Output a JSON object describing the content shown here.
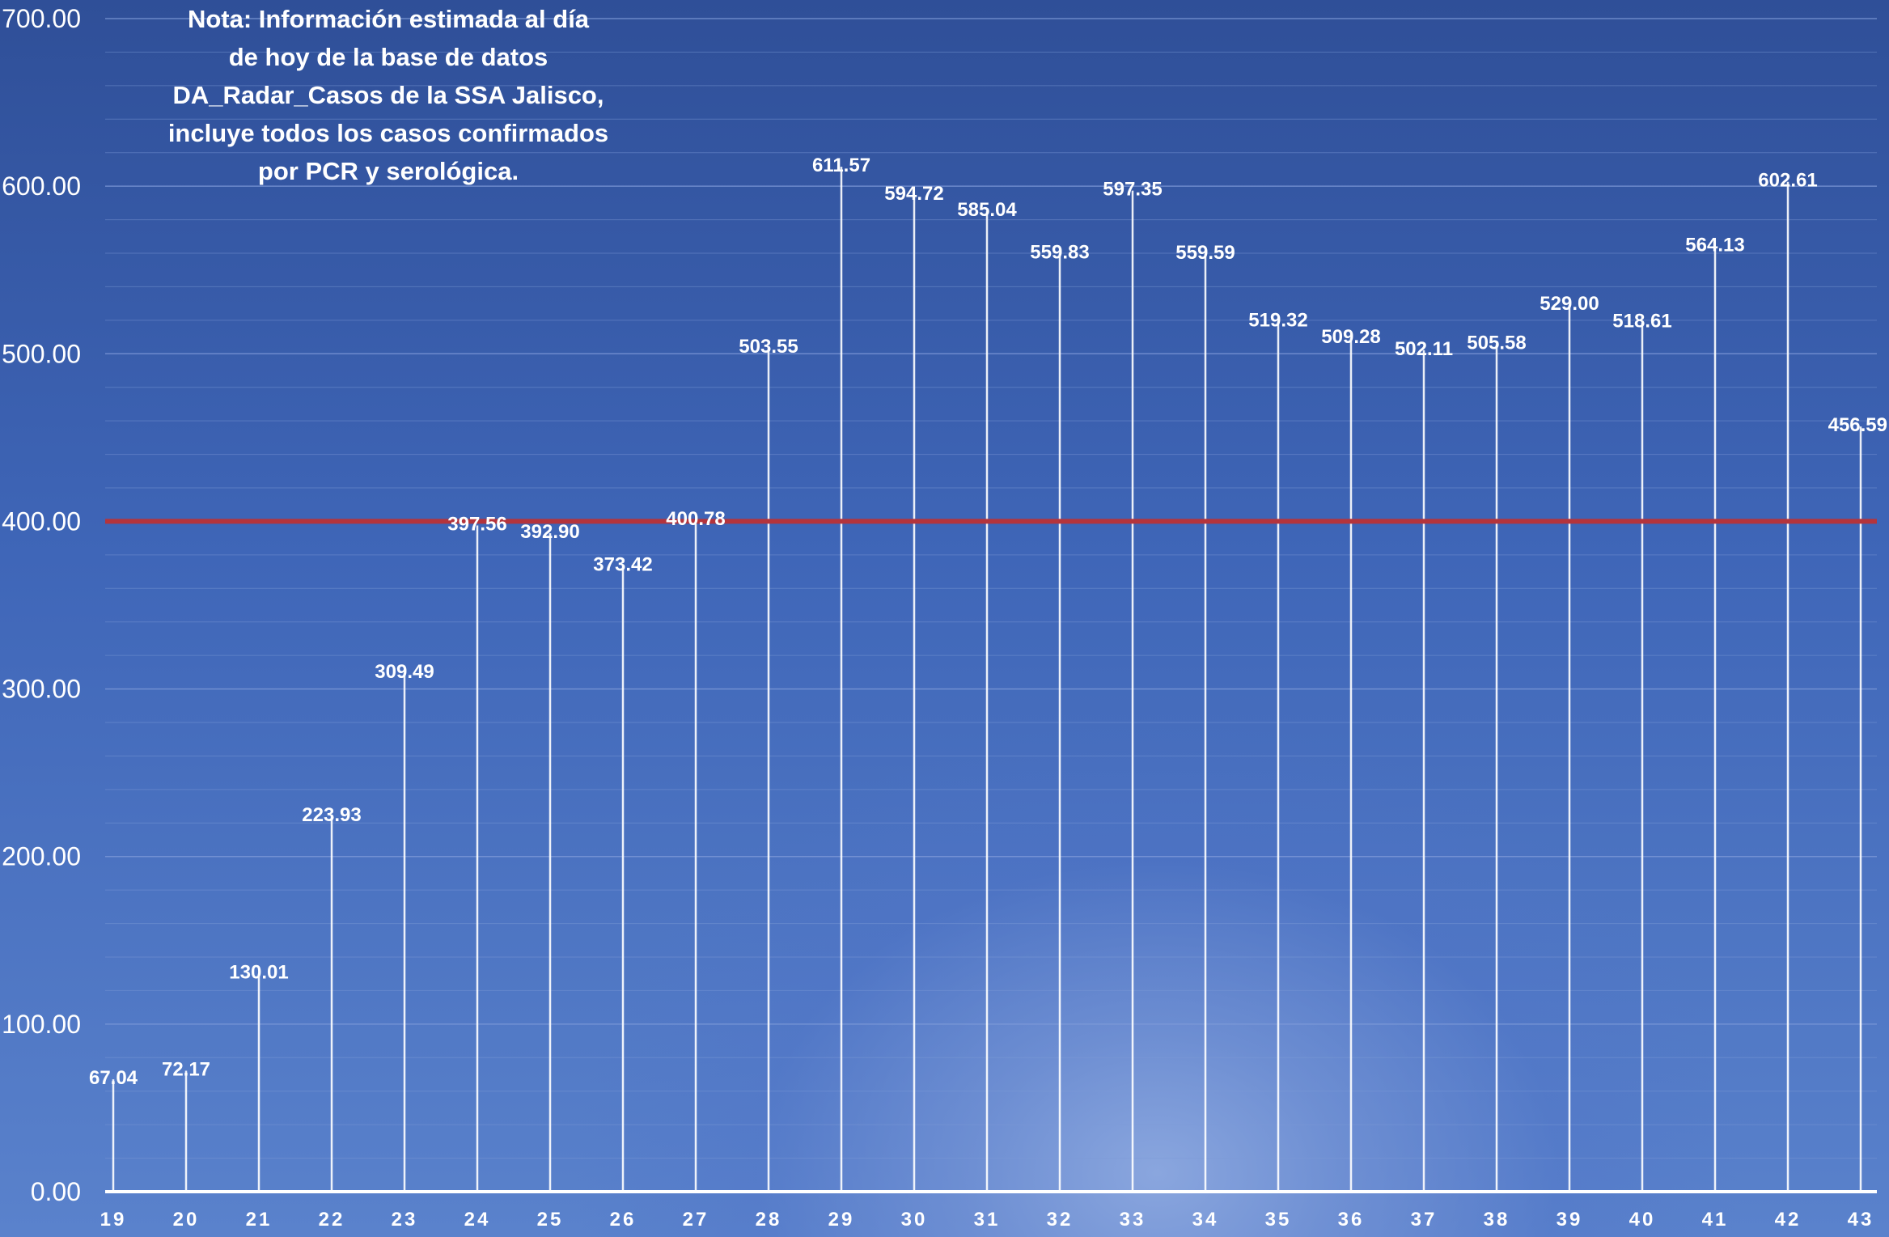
{
  "chart_data": {
    "type": "bar",
    "categories": [
      "19",
      "20",
      "21",
      "22",
      "23",
      "24",
      "25",
      "26",
      "27",
      "28",
      "29",
      "30",
      "31",
      "32",
      "33",
      "34",
      "35",
      "36",
      "37",
      "38",
      "39",
      "40",
      "41",
      "42",
      "43"
    ],
    "values": [
      67.04,
      72.17,
      130.01,
      223.93,
      309.49,
      397.56,
      392.9,
      373.42,
      400.78,
      503.55,
      611.57,
      594.72,
      585.04,
      559.83,
      597.35,
      559.59,
      519.32,
      509.28,
      502.11,
      505.58,
      529.0,
      518.61,
      564.13,
      602.61,
      456.59
    ],
    "value_labels": [
      "67.04",
      "72.17",
      "130.01",
      "223.93",
      "309.49",
      "397.56",
      "392.90",
      "373.42",
      "400.78",
      "503.55",
      "611.57",
      "594.72",
      "585.04",
      "559.83",
      "597.35",
      "559.59",
      "519.32",
      "509.28",
      "502.11",
      "505.58",
      "529.00",
      "518.61",
      "564.13",
      "602.61",
      "456.59"
    ],
    "yticks": [
      "0.00",
      "100.00",
      "200.00",
      "300.00",
      "400.00",
      "500.00",
      "600.00",
      "700.00"
    ],
    "ylim": [
      0,
      700
    ],
    "reference_line": 400,
    "grid": true,
    "annotation": "Nota: Información estimada al día\nde hoy de la base de datos\nDA_Radar_Casos de la SSA Jalisco,\nincluye todos los casos confirmados\npor PCR y serológica.",
    "colors": {
      "bar": "#ffffff",
      "reference_line": "#b4343c",
      "grid": "#7f9bd8",
      "axis": "#ffffff"
    }
  }
}
